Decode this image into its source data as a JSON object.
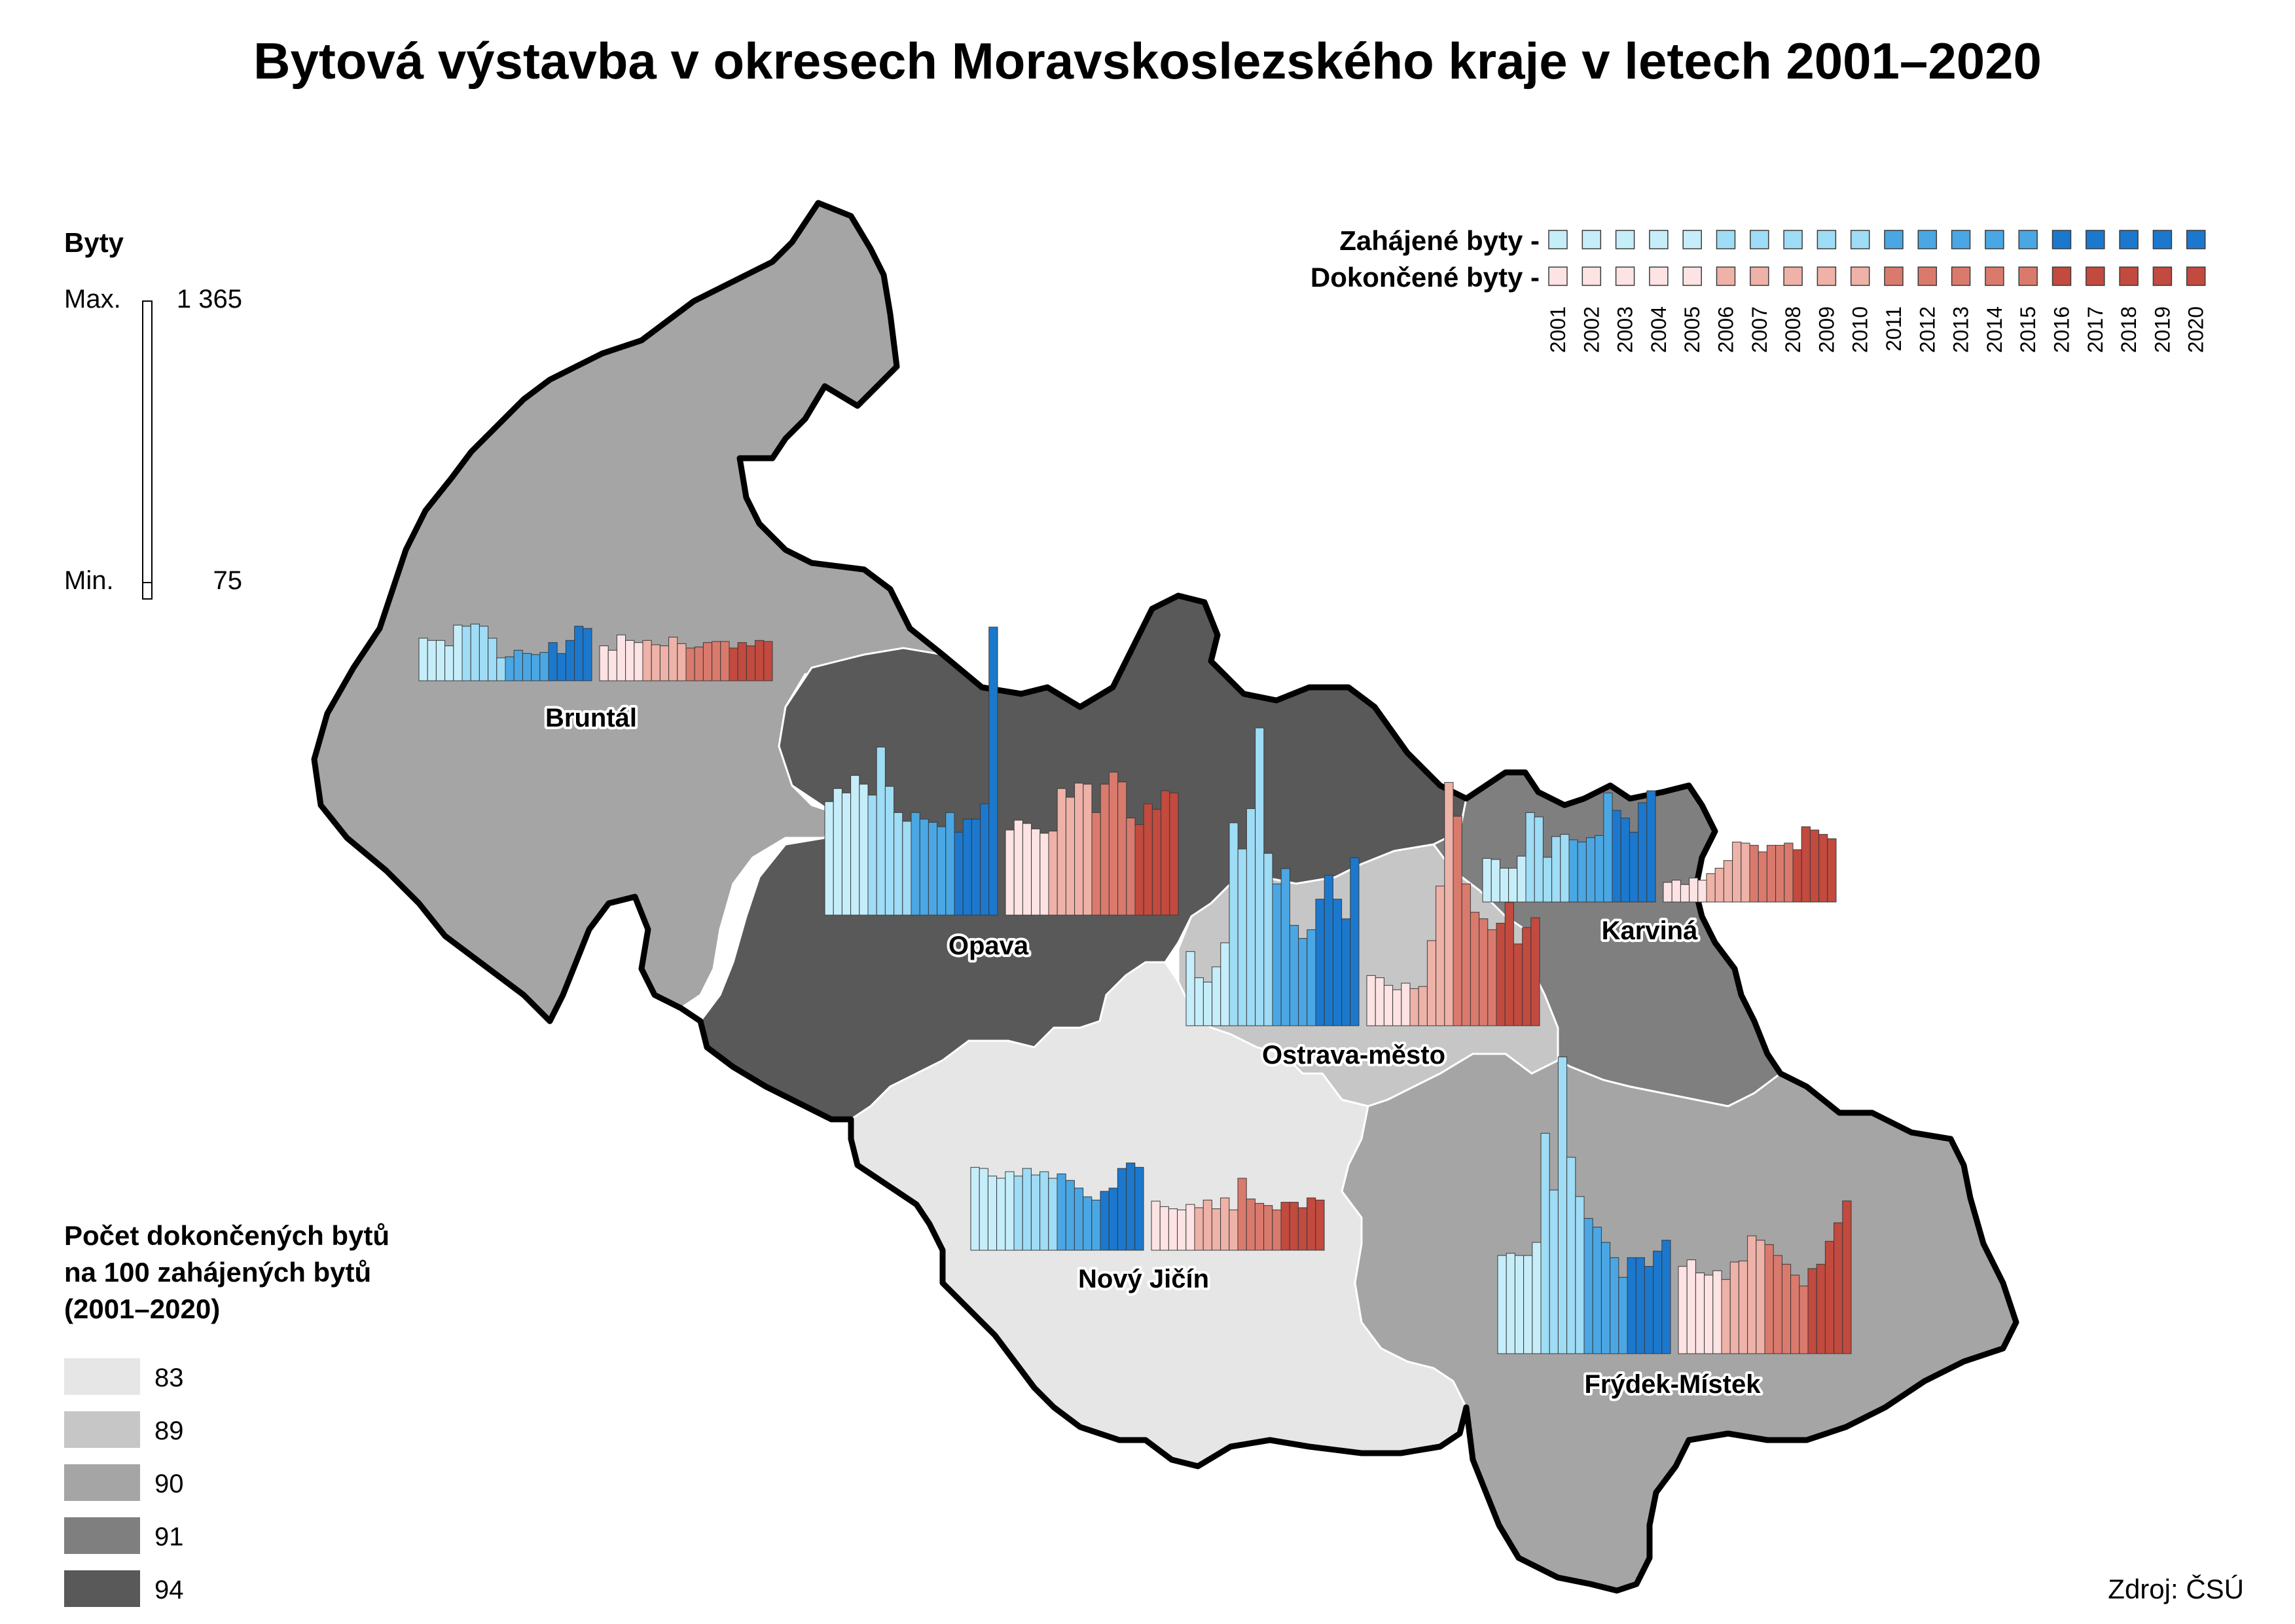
{
  "title": "Bytová výstavba v okresech Moravskoslezského kraje v letech 2001–2020",
  "source": "Zdroj: ČSÚ",
  "size_legend": {
    "heading": "Byty",
    "max_label": "Max.",
    "max_value": "1 365",
    "min_label": "Min.",
    "min_value": "75"
  },
  "series_legend": {
    "started_label": "Zahájené byty -",
    "completed_label": "Dokončené byty -",
    "years": [
      "2001",
      "2002",
      "2003",
      "2004",
      "2005",
      "2006",
      "2007",
      "2008",
      "2009",
      "2010",
      "2011",
      "2012",
      "2013",
      "2014",
      "2015",
      "2016",
      "2017",
      "2018",
      "2019",
      "2020"
    ],
    "started_colors": [
      "#c6eefa",
      "#c6eefa",
      "#c6eefa",
      "#c6eefa",
      "#c6eefa",
      "#9fdcf5",
      "#9fdcf5",
      "#9fdcf5",
      "#9fdcf5",
      "#9fdcf5",
      "#4aa7e4",
      "#4aa7e4",
      "#4aa7e4",
      "#4aa7e4",
      "#4aa7e4",
      "#1b78cd",
      "#1b78cd",
      "#1b78cd",
      "#1b78cd",
      "#1b78cd"
    ],
    "completed_colors": [
      "#fde3e3",
      "#fde3e3",
      "#fde3e3",
      "#fde3e3",
      "#fde3e3",
      "#eeb2a8",
      "#eeb2a8",
      "#eeb2a8",
      "#eeb2a8",
      "#eeb2a8",
      "#d97a6d",
      "#d97a6d",
      "#d97a6d",
      "#d97a6d",
      "#d97a6d",
      "#c24a3e",
      "#c24a3e",
      "#c24a3e",
      "#c24a3e",
      "#c24a3e"
    ]
  },
  "choropleth_legend": {
    "heading_lines": [
      "Počet dokončených bytů",
      "na 100 zahájených bytů",
      "(2001–2020)"
    ],
    "classes": [
      {
        "value": "83",
        "color": "#e6e6e6"
      },
      {
        "value": "89",
        "color": "#c6c6c6"
      },
      {
        "value": "90",
        "color": "#a5a5a5"
      },
      {
        "value": "91",
        "color": "#7f7f7f"
      },
      {
        "value": "94",
        "color": "#595959"
      }
    ]
  },
  "districts": [
    {
      "name": "Bruntál",
      "ratio": "90",
      "color": "#a5a5a5",
      "started": [
        195,
        185,
        185,
        160,
        255,
        250,
        260,
        250,
        195,
        105,
        110,
        140,
        125,
        120,
        130,
        175,
        125,
        185,
        250,
        240
      ],
      "completed": [
        160,
        140,
        210,
        185,
        175,
        185,
        165,
        160,
        200,
        170,
        150,
        155,
        175,
        180,
        180,
        150,
        175,
        160,
        185,
        180
      ]
    },
    {
      "name": "Opava",
      "ratio": "94",
      "color": "#595959",
      "started": [
        520,
        580,
        560,
        640,
        600,
        550,
        770,
        590,
        470,
        430,
        470,
        440,
        425,
        405,
        470,
        380,
        440,
        440,
        510,
        1320
      ],
      "completed": [
        390,
        435,
        420,
        395,
        375,
        385,
        580,
        540,
        605,
        600,
        470,
        600,
        655,
        610,
        445,
        415,
        510,
        485,
        570,
        560
      ]
    },
    {
      "name": "Ostrava-město",
      "ratio": "89",
      "color": "#c6c6c6",
      "started": [
        340,
        220,
        200,
        270,
        380,
        930,
        810,
        995,
        1365,
        790,
        650,
        720,
        460,
        400,
        440,
        580,
        690,
        580,
        490,
        770
      ],
      "completed": [
        230,
        220,
        185,
        165,
        195,
        170,
        180,
        390,
        640,
        1115,
        960,
        650,
        520,
        490,
        440,
        470,
        565,
        375,
        450,
        495
      ]
    },
    {
      "name": "Karviná",
      "ratio": "91",
      "color": "#7f7f7f",
      "started": [
        200,
        195,
        155,
        155,
        210,
        410,
        390,
        205,
        300,
        310,
        285,
        275,
        295,
        305,
        500,
        420,
        385,
        320,
        455,
        510
      ],
      "completed": [
        90,
        100,
        80,
        110,
        100,
        130,
        155,
        190,
        275,
        270,
        260,
        230,
        260,
        260,
        270,
        240,
        345,
        330,
        310,
        290
      ]
    },
    {
      "name": "Nový Jičín",
      "ratio": "83",
      "color": "#e6e6e6",
      "started": [
        380,
        375,
        340,
        330,
        360,
        340,
        375,
        345,
        360,
        330,
        350,
        320,
        285,
        245,
        230,
        270,
        285,
        375,
        400,
        380
      ],
      "completed": [
        225,
        200,
        190,
        185,
        210,
        195,
        230,
        190,
        240,
        185,
        330,
        235,
        215,
        205,
        185,
        220,
        220,
        195,
        240,
        230
      ]
    },
    {
      "name": "Frýdek-Místek",
      "ratio": "90",
      "color": "#a5a5a5",
      "started": [
        450,
        460,
        450,
        450,
        510,
        1010,
        750,
        1360,
        900,
        720,
        620,
        580,
        510,
        440,
        350,
        440,
        440,
        400,
        470,
        520
      ],
      "completed": [
        400,
        430,
        370,
        360,
        380,
        340,
        420,
        425,
        540,
        520,
        500,
        450,
        410,
        360,
        310,
        390,
        410,
        515,
        600,
        700
      ]
    }
  ]
}
